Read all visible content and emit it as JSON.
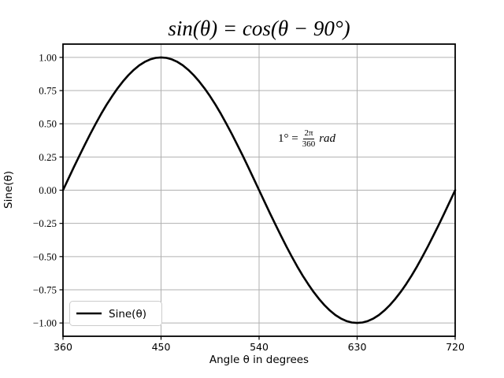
{
  "figure": {
    "background": "#ffffff",
    "annotation": {
      "prefix": "1° =",
      "numerator": "2π",
      "denominator": "360",
      "suffix": "rad"
    },
    "legend": {
      "position": "lower left",
      "entries": [
        {
          "label": "Sine(θ)",
          "color": "#000000"
        }
      ]
    }
  },
  "chart_data": {
    "type": "line",
    "title": "sin(θ) = cos(θ − 90°)",
    "xlabel": "Angle θ in degrees",
    "ylabel": "Sine(θ)",
    "xlim": [
      360,
      720
    ],
    "ylim": [
      -1.1,
      1.1
    ],
    "x_ticks": [
      360,
      450,
      540,
      630,
      720
    ],
    "y_ticks": [
      1.0,
      0.75,
      0.5,
      0.25,
      0.0,
      -0.25,
      -0.5,
      -0.75,
      -1.0
    ],
    "grid": true,
    "legend_position": "lower left",
    "annotation": "1° = 2π/360 rad",
    "series": [
      {
        "name": "Sine(θ)",
        "color": "#000000",
        "x_start": 360,
        "x_step": 5,
        "y": [
          0.0,
          0.087,
          0.174,
          0.259,
          0.342,
          0.423,
          0.5,
          0.574,
          0.643,
          0.707,
          0.766,
          0.819,
          0.866,
          0.906,
          0.94,
          0.966,
          0.985,
          0.996,
          1.0,
          0.996,
          0.985,
          0.966,
          0.94,
          0.906,
          0.866,
          0.819,
          0.766,
          0.707,
          0.643,
          0.574,
          0.5,
          0.423,
          0.342,
          0.259,
          0.174,
          0.087,
          0.0,
          -0.087,
          -0.174,
          -0.259,
          -0.342,
          -0.423,
          -0.5,
          -0.574,
          -0.643,
          -0.707,
          -0.766,
          -0.819,
          -0.866,
          -0.906,
          -0.94,
          -0.966,
          -0.985,
          -0.996,
          -1.0,
          -0.996,
          -0.985,
          -0.966,
          -0.94,
          -0.906,
          -0.866,
          -0.819,
          -0.766,
          -0.707,
          -0.643,
          -0.574,
          -0.5,
          -0.423,
          -0.342,
          -0.259,
          -0.174,
          -0.087,
          0.0
        ]
      }
    ]
  },
  "style": {
    "grid_color": "#b0b0b0",
    "spine_color": "#000000",
    "line_color": "#000000",
    "legend_border": "#cccccc"
  }
}
